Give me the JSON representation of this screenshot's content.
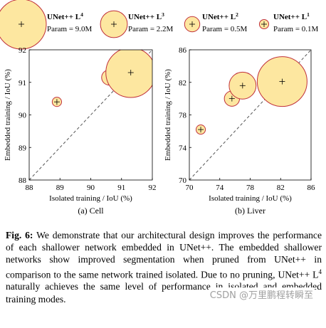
{
  "legend": [
    {
      "name": "UNet++ L",
      "sup": "4",
      "param": "Param = 9.0M"
    },
    {
      "name": "UNet++ L",
      "sup": "3",
      "param": "Param = 2.2M"
    },
    {
      "name": "UNet++ L",
      "sup": "2",
      "param": "Param = 0.5M"
    },
    {
      "name": "UNet++ L",
      "sup": "1",
      "param": "Param = 0.1M"
    }
  ],
  "colors": {
    "fill": "#fde7a0",
    "stroke": "#c0303a",
    "center": "#c0303a",
    "diag": "#555555"
  },
  "chart_data": [
    {
      "type": "scatter",
      "subtitle": "(a) Cell",
      "xlabel": "Isolated training / IoU (%)",
      "ylabel": "Embedded training / IoU (%)",
      "xlim": [
        88,
        92
      ],
      "ylim": [
        88,
        92
      ],
      "xticks": [
        88,
        89,
        90,
        91,
        92
      ],
      "yticks": [
        88,
        89,
        90,
        91,
        92
      ],
      "diagonal": true,
      "points": [
        {
          "series": "L1",
          "x": 88.9,
          "y": 90.4,
          "params_m": 0.1
        },
        {
          "series": "L2",
          "x": 90.6,
          "y": 91.15,
          "params_m": 0.5
        },
        {
          "series": "L3",
          "x": 91.05,
          "y": 91.25,
          "params_m": 2.2
        },
        {
          "series": "L4",
          "x": 91.3,
          "y": 91.3,
          "params_m": 9.0
        }
      ]
    },
    {
      "type": "scatter",
      "subtitle": "(b) Liver",
      "xlabel": "Isolated training / IoU (%)",
      "ylabel": "Embedded training / IoU (%)",
      "xlim": [
        70,
        86
      ],
      "ylim": [
        70,
        86
      ],
      "xticks": [
        70,
        74,
        78,
        82,
        86
      ],
      "yticks": [
        70,
        74,
        78,
        82,
        86
      ],
      "diagonal": true,
      "points": [
        {
          "series": "L1",
          "x": 71.5,
          "y": 76.2,
          "params_m": 0.1
        },
        {
          "series": "L2",
          "x": 75.6,
          "y": 80.0,
          "params_m": 0.5
        },
        {
          "series": "L3",
          "x": 77.0,
          "y": 81.6,
          "params_m": 2.2
        },
        {
          "series": "L4",
          "x": 82.2,
          "y": 82.1,
          "params_m": 9.0
        }
      ]
    }
  ],
  "caption": {
    "label": "Fig. 6:",
    "text_1": " We demonstrate that our architectural design improves the performance of each shallower network embedded in UNet++. The embedded shallower networks show improved segmentation when pruned from UNet++ in comparison to the same network trained isolated. Due to no pruning, UNet++ L",
    "sup": "4",
    "text_2": " naturally achieves the same level of performance in isolated and embedded training modes."
  },
  "watermark": "CSDN @万里鹏程转瞬至"
}
